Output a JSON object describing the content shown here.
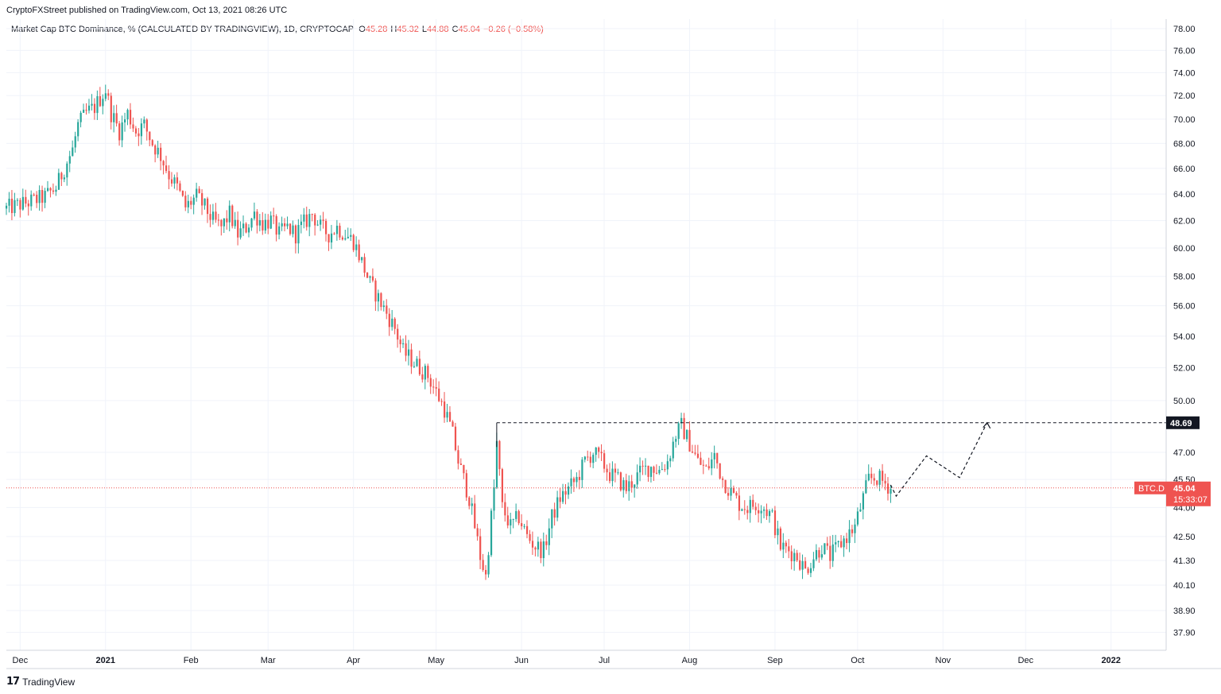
{
  "header": {
    "published": "CryptoFXStreet published on TradingView.com, Oct 13, 2021 08:26 UTC"
  },
  "legend": {
    "title": "Market Cap BTC Dominance, % (CALCULATED BY TRADINGVIEW), 1D, CRYPTOCAP",
    "open_label": "O",
    "open": "45.28",
    "high_label": "H",
    "high": "45.32",
    "low_label": "L",
    "low": "44.88",
    "close_label": "C",
    "close": "45.04",
    "change": "−0.26 (−0.58%)"
  },
  "footer": {
    "brand": "TradingView",
    "logo_glyph": "17"
  },
  "colors": {
    "up": "#26a69a",
    "down": "#ef5350",
    "grid": "#f0f3fa",
    "price_line": "#ef5350",
    "dashed": "#131722"
  },
  "chart_data": {
    "type": "candlestick",
    "symbol": "BTC.D",
    "scale": "log",
    "y_ticks": [
      78.0,
      76.0,
      74.0,
      72.0,
      70.0,
      68.0,
      66.0,
      64.0,
      62.0,
      60.0,
      58.0,
      56.0,
      54.0,
      52.0,
      50.0,
      47.0,
      45.5,
      44.0,
      42.5,
      41.3,
      40.1,
      38.9,
      37.9
    ],
    "y_tick_labels": [
      "78.00",
      "76.00",
      "74.00",
      "72.00",
      "70.00",
      "68.00",
      "66.00",
      "64.00",
      "62.00",
      "60.00",
      "58.00",
      "56.00",
      "54.00",
      "52.00",
      "50.00",
      "47.00",
      "45.50",
      "44.00",
      "42.50",
      "41.30",
      "40.10",
      "38.90",
      "37.90"
    ],
    "x_labels": [
      {
        "label": "Dec",
        "date": "2020-12-01",
        "bold": false
      },
      {
        "label": "2021",
        "date": "2021-01-01",
        "bold": true
      },
      {
        "label": "Feb",
        "date": "2021-02-01",
        "bold": false
      },
      {
        "label": "Mar",
        "date": "2021-03-01",
        "bold": false
      },
      {
        "label": "Apr",
        "date": "2021-04-01",
        "bold": false
      },
      {
        "label": "May",
        "date": "2021-05-01",
        "bold": false
      },
      {
        "label": "Jun",
        "date": "2021-06-01",
        "bold": false
      },
      {
        "label": "Jul",
        "date": "2021-07-01",
        "bold": false
      },
      {
        "label": "Aug",
        "date": "2021-08-01",
        "bold": false
      },
      {
        "label": "Sep",
        "date": "2021-09-01",
        "bold": false
      },
      {
        "label": "Oct",
        "date": "2021-10-01",
        "bold": false
      },
      {
        "label": "Nov",
        "date": "2021-11-01",
        "bold": false
      },
      {
        "label": "Dec",
        "date": "2021-12-01",
        "bold": false
      },
      {
        "label": "2022",
        "date": "2022-01-01",
        "bold": true
      }
    ],
    "closes": [
      {
        "date": "2020-11-26",
        "close": 62.9
      },
      {
        "date": "2020-12-01",
        "close": 63.2
      },
      {
        "date": "2020-12-06",
        "close": 63.5
      },
      {
        "date": "2020-12-10",
        "close": 63.8
      },
      {
        "date": "2020-12-14",
        "close": 64.5
      },
      {
        "date": "2020-12-17",
        "close": 66.0
      },
      {
        "date": "2020-12-20",
        "close": 67.5
      },
      {
        "date": "2020-12-22",
        "close": 69.5
      },
      {
        "date": "2020-12-25",
        "close": 70.5
      },
      {
        "date": "2020-12-28",
        "close": 71.0
      },
      {
        "date": "2021-01-01",
        "close": 72.5
      },
      {
        "date": "2021-01-03",
        "close": 70.5
      },
      {
        "date": "2021-01-06",
        "close": 69.0
      },
      {
        "date": "2021-01-09",
        "close": 70.5
      },
      {
        "date": "2021-01-12",
        "close": 69.0
      },
      {
        "date": "2021-01-15",
        "close": 69.5
      },
      {
        "date": "2021-01-18",
        "close": 68.0
      },
      {
        "date": "2021-01-21",
        "close": 67.0
      },
      {
        "date": "2021-01-24",
        "close": 65.5
      },
      {
        "date": "2021-01-27",
        "close": 64.5
      },
      {
        "date": "2021-01-30",
        "close": 63.0
      },
      {
        "date": "2021-02-03",
        "close": 63.8
      },
      {
        "date": "2021-02-06",
        "close": 63.0
      },
      {
        "date": "2021-02-09",
        "close": 62.0
      },
      {
        "date": "2021-02-12",
        "close": 61.5
      },
      {
        "date": "2021-02-15",
        "close": 62.5
      },
      {
        "date": "2021-02-18",
        "close": 61.0
      },
      {
        "date": "2021-02-21",
        "close": 61.5
      },
      {
        "date": "2021-02-24",
        "close": 62.5
      },
      {
        "date": "2021-02-27",
        "close": 61.8
      },
      {
        "date": "2021-03-02",
        "close": 62.0
      },
      {
        "date": "2021-03-05",
        "close": 61.0
      },
      {
        "date": "2021-03-08",
        "close": 61.5
      },
      {
        "date": "2021-03-11",
        "close": 61.0
      },
      {
        "date": "2021-03-14",
        "close": 61.8
      },
      {
        "date": "2021-03-17",
        "close": 62.5
      },
      {
        "date": "2021-03-20",
        "close": 61.5
      },
      {
        "date": "2021-03-23",
        "close": 61.0
      },
      {
        "date": "2021-03-26",
        "close": 61.5
      },
      {
        "date": "2021-03-29",
        "close": 61.0
      },
      {
        "date": "2021-04-01",
        "close": 60.5
      },
      {
        "date": "2021-04-04",
        "close": 59.0
      },
      {
        "date": "2021-04-07",
        "close": 57.5
      },
      {
        "date": "2021-04-10",
        "close": 56.5
      },
      {
        "date": "2021-04-13",
        "close": 55.5
      },
      {
        "date": "2021-04-16",
        "close": 54.5
      },
      {
        "date": "2021-04-19",
        "close": 53.0
      },
      {
        "date": "2021-04-22",
        "close": 52.5
      },
      {
        "date": "2021-04-25",
        "close": 52.0
      },
      {
        "date": "2021-04-28",
        "close": 51.5
      },
      {
        "date": "2021-05-01",
        "close": 50.5
      },
      {
        "date": "2021-05-04",
        "close": 49.5
      },
      {
        "date": "2021-05-07",
        "close": 48.0
      },
      {
        "date": "2021-05-09",
        "close": 46.5
      },
      {
        "date": "2021-05-11",
        "close": 45.5
      },
      {
        "date": "2021-05-13",
        "close": 44.5
      },
      {
        "date": "2021-05-15",
        "close": 43.0
      },
      {
        "date": "2021-05-17",
        "close": 41.5
      },
      {
        "date": "2021-05-19",
        "close": 40.5
      },
      {
        "date": "2021-05-20",
        "close": 42.0
      },
      {
        "date": "2021-05-22",
        "close": 45.0
      },
      {
        "date": "2021-05-23",
        "close": 47.5
      },
      {
        "date": "2021-05-25",
        "close": 44.0
      },
      {
        "date": "2021-05-28",
        "close": 43.0
      },
      {
        "date": "2021-05-31",
        "close": 43.5
      },
      {
        "date": "2021-06-03",
        "close": 42.5
      },
      {
        "date": "2021-06-06",
        "close": 42.0
      },
      {
        "date": "2021-06-09",
        "close": 41.8
      },
      {
        "date": "2021-06-12",
        "close": 43.5
      },
      {
        "date": "2021-06-15",
        "close": 44.5
      },
      {
        "date": "2021-06-18",
        "close": 45.0
      },
      {
        "date": "2021-06-21",
        "close": 45.5
      },
      {
        "date": "2021-06-24",
        "close": 46.5
      },
      {
        "date": "2021-06-27",
        "close": 47.0
      },
      {
        "date": "2021-06-30",
        "close": 46.5
      },
      {
        "date": "2021-07-03",
        "close": 45.8
      },
      {
        "date": "2021-07-06",
        "close": 45.5
      },
      {
        "date": "2021-07-09",
        "close": 45.0
      },
      {
        "date": "2021-07-12",
        "close": 45.5
      },
      {
        "date": "2021-07-15",
        "close": 46.0
      },
      {
        "date": "2021-07-18",
        "close": 46.2
      },
      {
        "date": "2021-07-21",
        "close": 46.0
      },
      {
        "date": "2021-07-24",
        "close": 46.5
      },
      {
        "date": "2021-07-27",
        "close": 48.0
      },
      {
        "date": "2021-07-29",
        "close": 48.5
      },
      {
        "date": "2021-08-01",
        "close": 47.5
      },
      {
        "date": "2021-08-04",
        "close": 46.5
      },
      {
        "date": "2021-08-07",
        "close": 46.0
      },
      {
        "date": "2021-08-10",
        "close": 46.8
      },
      {
        "date": "2021-08-13",
        "close": 45.5
      },
      {
        "date": "2021-08-16",
        "close": 44.8
      },
      {
        "date": "2021-08-19",
        "close": 44.2
      },
      {
        "date": "2021-08-22",
        "close": 44.0
      },
      {
        "date": "2021-08-25",
        "close": 44.2
      },
      {
        "date": "2021-08-28",
        "close": 44.0
      },
      {
        "date": "2021-08-31",
        "close": 43.5
      },
      {
        "date": "2021-09-03",
        "close": 42.0
      },
      {
        "date": "2021-09-06",
        "close": 41.8
      },
      {
        "date": "2021-09-09",
        "close": 41.5
      },
      {
        "date": "2021-09-12",
        "close": 40.8
      },
      {
        "date": "2021-09-15",
        "close": 41.5
      },
      {
        "date": "2021-09-18",
        "close": 42.0
      },
      {
        "date": "2021-09-21",
        "close": 41.5
      },
      {
        "date": "2021-09-24",
        "close": 42.0
      },
      {
        "date": "2021-09-27",
        "close": 42.5
      },
      {
        "date": "2021-09-30",
        "close": 43.0
      },
      {
        "date": "2021-10-03",
        "close": 44.5
      },
      {
        "date": "2021-10-05",
        "close": 45.5
      },
      {
        "date": "2021-10-08",
        "close": 45.6
      },
      {
        "date": "2021-10-11",
        "close": 45.3
      },
      {
        "date": "2021-10-13",
        "close": 45.04
      }
    ],
    "last_price_label": "BTC.D",
    "last_price": "45.04",
    "countdown": "15:33:07",
    "resistance_level": "48.69",
    "resistance_from": "2021-05-23",
    "projection_path": [
      {
        "date": "2021-10-15",
        "value": 44.6
      },
      {
        "date": "2021-10-26",
        "value": 46.8
      },
      {
        "date": "2021-11-07",
        "value": 45.6
      },
      {
        "date": "2021-11-17",
        "value": 48.69
      }
    ]
  }
}
